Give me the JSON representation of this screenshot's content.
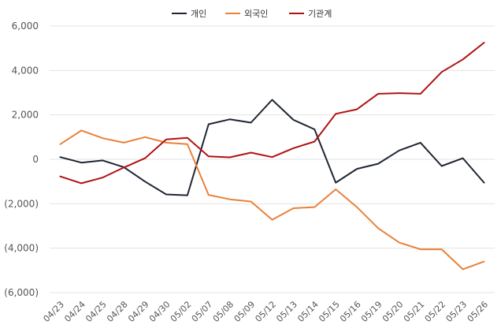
{
  "chart_data": {
    "type": "line",
    "title": "",
    "xlabel": "",
    "ylabel": "",
    "ylim": [
      -6000,
      6000
    ],
    "yticks": [
      6000,
      4000,
      2000,
      0,
      -2000,
      -4000,
      -6000
    ],
    "ytick_labels": [
      "6,000",
      "4,000",
      "2,000",
      "0",
      "(2,000)",
      "(4,000)",
      "(6,000)"
    ],
    "grid": "horizontal",
    "legend": "top-center",
    "categories": [
      "04/23",
      "04/24",
      "04/25",
      "04/28",
      "04/29",
      "04/30",
      "05/02",
      "05/07",
      "05/08",
      "05/09",
      "05/12",
      "05/13",
      "05/14",
      "05/15",
      "05/16",
      "05/19",
      "05/20",
      "05/21",
      "05/22",
      "05/23",
      "05/26"
    ],
    "series": [
      {
        "name": "개인",
        "color": "#1f2533",
        "values": [
          100,
          -150,
          -50,
          -350,
          -1000,
          -1580,
          -1620,
          1580,
          1800,
          1650,
          2680,
          1780,
          1350,
          -1050,
          -430,
          -200,
          400,
          750,
          -300,
          50,
          -1050
        ]
      },
      {
        "name": "외국인",
        "color": "#e8823a",
        "values": [
          680,
          1300,
          950,
          750,
          1000,
          750,
          680,
          -1600,
          -1800,
          -1900,
          -2720,
          -2200,
          -2150,
          -1350,
          -2150,
          -3100,
          -3750,
          -4050,
          -4050,
          -4950,
          -4600
        ]
      },
      {
        "name": "기관계",
        "color": "#b01212",
        "values": [
          -770,
          -1080,
          -820,
          -370,
          50,
          900,
          970,
          130,
          90,
          300,
          100,
          500,
          800,
          2050,
          2250,
          2950,
          2980,
          2950,
          3930,
          4500,
          5250
        ]
      }
    ]
  }
}
